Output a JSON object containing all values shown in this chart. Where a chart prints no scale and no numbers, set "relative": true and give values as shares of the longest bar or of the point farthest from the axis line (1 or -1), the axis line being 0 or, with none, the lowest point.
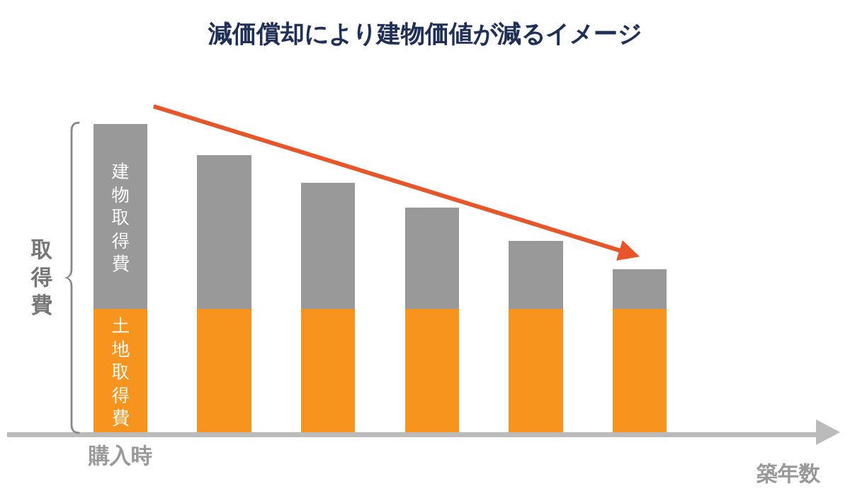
{
  "chart_data": {
    "type": "bar",
    "title": "減価償却により建物価値が減るイメージ",
    "xlabel": "築年数",
    "ylabel": "取得費",
    "relative": true,
    "stacked": true,
    "grid": false,
    "categories": [
      "購入時",
      null,
      null,
      null,
      null,
      null
    ],
    "series": [
      {
        "color": "#f7941d",
        "values": [
          0.4,
          0.4,
          0.4,
          0.4,
          0.4,
          0.4
        ]
      },
      {
        "color": "#999999",
        "values": [
          0.6,
          0.5,
          0.41,
          0.33,
          0.22,
          0.13
        ]
      }
    ],
    "annotations": [
      "建物取得費",
      "土地取得費"
    ]
  }
}
